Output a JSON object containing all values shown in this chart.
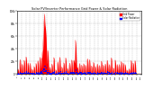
{
  "title": "Solar PV/Inverter Performance Grid Power & Solar Radiation",
  "bg_color": "#ffffff",
  "grid_color": "#aaaaaa",
  "bar_color": "#ff0000",
  "dot_color": "#0000ff",
  "legend_labels": [
    "Grid Power",
    "Solar Radiation"
  ],
  "legend_colors": [
    "#ff0000",
    "#0000ff"
  ],
  "num_points": 500,
  "days": 60,
  "figsize": [
    1.6,
    1.0
  ],
  "dpi": 100
}
